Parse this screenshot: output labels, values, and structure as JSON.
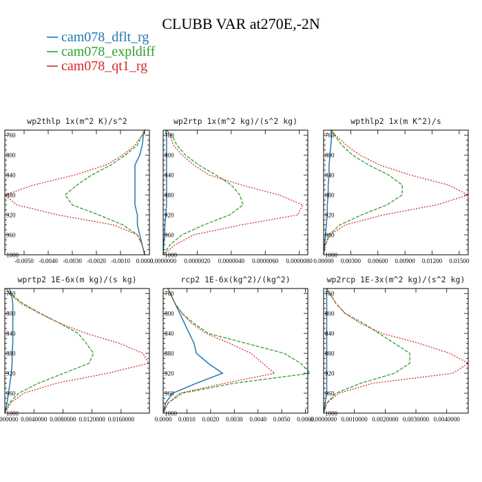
{
  "chart_data": {
    "type": "line",
    "title": "CLUBB VAR at270E,-2N",
    "legend": {
      "placement": "top-left",
      "entries": [
        {
          "name": "cam078_dflt_rg",
          "color": "#1f77b4"
        },
        {
          "name": "cam078_expldiff",
          "color": "#2ca02c"
        },
        {
          "name": "cam078_qt1_rg",
          "color": "#d62728"
        }
      ]
    },
    "y_axis": {
      "ylim": [
        1000,
        750
      ],
      "ticks": [
        760,
        800,
        840,
        880,
        920,
        960,
        1000
      ],
      "tick_labels": [
        "760",
        "800",
        "840",
        "880",
        "920",
        "960",
        "1000"
      ]
    },
    "panels": [
      {
        "title": "wp2thlp  1x(m^2 K)/s^2",
        "xlim": [
          -0.0058,
          0.0002
        ],
        "xticks": [
          -0.005,
          -0.004,
          -0.003,
          -0.002,
          -0.001,
          0.0
        ],
        "xtick_labels": [
          "-0.0050",
          "-0.0040",
          "-0.0030",
          "-0.0020",
          "-0.0010",
          "0.0000"
        ],
        "y": [
          750,
          760,
          780,
          800,
          820,
          840,
          860,
          880,
          900,
          920,
          940,
          960,
          980,
          1000
        ],
        "series": [
          {
            "name": "cam078_dflt_rg",
            "values": [
              0,
              -5e-05,
              -0.0001,
              -0.0002,
              -0.0004,
              -0.0004,
              -0.0004,
              -0.0004,
              -0.0004,
              -0.0003,
              -0.0003,
              -0.0002,
              -0.0001,
              0
            ]
          },
          {
            "name": "cam078_expldiff",
            "values": [
              0,
              -0.0001,
              -0.0003,
              -0.0008,
              -0.0014,
              -0.0022,
              -0.0028,
              -0.0033,
              -0.003,
              -0.0019,
              -0.0009,
              -0.0003,
              -0.0001,
              0
            ]
          },
          {
            "name": "cam078_qt1_rg",
            "values": [
              0,
              -0.0001,
              -0.0004,
              -0.0009,
              -0.0016,
              -0.0029,
              -0.0046,
              -0.0058,
              -0.0053,
              -0.0036,
              -0.0013,
              -0.0003,
              -0.0001,
              0
            ]
          }
        ]
      },
      {
        "title": "wp2rtp  1x(m^2 kg)/(s^2 kg)",
        "xlim": [
          0.0,
          8.5e-06
        ],
        "xticks": [
          0.0,
          2e-06,
          4e-06,
          6e-06,
          8e-06
        ],
        "xtick_labels": [
          "0.0000000",
          "0.0000020",
          "0.0000040",
          "0.0000060",
          "0.0000080"
        ],
        "y": [
          750,
          760,
          780,
          800,
          820,
          840,
          860,
          880,
          900,
          920,
          940,
          960,
          980,
          1000
        ],
        "series": [
          {
            "name": "cam078_dflt_rg",
            "values": [
              1.5e-07,
              2e-07,
              2e-07,
              2e-07,
              2e-07,
              2e-07,
              2e-07,
              2e-07,
              2e-07,
              1.5e-07,
              1e-07,
              8e-08,
              3e-08,
              0
            ]
          },
          {
            "name": "cam078_expldiff",
            "values": [
              2e-07,
              5e-07,
              8e-07,
              1.3e-06,
              2.1e-06,
              3.1e-06,
              4e-06,
              4.5e-06,
              4.7e-06,
              3.9e-06,
              2.4e-06,
              1.1e-06,
              4e-07,
              0
            ]
          },
          {
            "name": "cam078_qt1_rg",
            "values": [
              2e-07,
              4e-07,
              6e-07,
              1.1e-06,
              1.8e-06,
              2.7e-06,
              4.6e-06,
              6.8e-06,
              8.2e-06,
              7.9e-06,
              4.6e-06,
              1.8e-06,
              7e-07,
              0
            ]
          }
        ]
      },
      {
        "title": "wpthlp2  1x(m K^2)/s",
        "xlim": [
          0.0,
          0.016
        ],
        "xticks": [
          0.0,
          0.003,
          0.006,
          0.009,
          0.012,
          0.015
        ],
        "xtick_labels": [
          "0.00000",
          "0.00300",
          "0.00600",
          "0.00900",
          "0.01200",
          "0.01500"
        ],
        "y": [
          750,
          760,
          780,
          800,
          820,
          840,
          860,
          880,
          900,
          920,
          940,
          960,
          980,
          1000
        ],
        "series": [
          {
            "name": "cam078_dflt_rg",
            "values": [
              0.0008,
              0.0009,
              0.0008,
              0.0007,
              0.0006,
              0.0006,
              0.0005,
              0.0005,
              0.0004,
              0.0004,
              0.0003,
              0.0002,
              0.0001,
              0
            ]
          },
          {
            "name": "cam078_expldiff",
            "values": [
              0.0008,
              0.0012,
              0.002,
              0.0032,
              0.005,
              0.0072,
              0.0087,
              0.0087,
              0.007,
              0.0042,
              0.0018,
              0.0006,
              0.0002,
              0
            ]
          },
          {
            "name": "cam078_qt1_rg",
            "values": [
              0.0009,
              0.0013,
              0.0025,
              0.004,
              0.0062,
              0.0096,
              0.0138,
              0.016,
              0.0125,
              0.0066,
              0.0024,
              0.0007,
              0.0002,
              0
            ]
          }
        ]
      },
      {
        "title": "wprtp2  1E-6x(m kg)/(s kg)",
        "xlim": [
          0.0,
          0.0199
        ],
        "xticks": [
          0.0,
          0.004,
          0.008,
          0.012,
          0.016
        ],
        "xtick_labels": [
          "0.0000000",
          "0.0040000",
          "0.0080000",
          "0.0120000",
          "0.0160000"
        ],
        "y": [
          750,
          760,
          780,
          800,
          820,
          840,
          860,
          880,
          900,
          920,
          940,
          960,
          980,
          1000
        ],
        "series": [
          {
            "name": "cam078_dflt_rg",
            "values": [
              0.0006,
              0.0009,
              0.0011,
              0.0011,
              0.0011,
              0.0011,
              0.0011,
              0.001,
              0.001,
              0.0009,
              0.0007,
              0.0005,
              0.0003,
              0
            ]
          },
          {
            "name": "cam078_expldiff",
            "values": [
              0.0002,
              0.0007,
              0.0025,
              0.0049,
              0.0076,
              0.0101,
              0.0112,
              0.0122,
              0.0116,
              0.0081,
              0.0046,
              0.0019,
              0.0006,
              0
            ]
          },
          {
            "name": "cam078_qt1_rg",
            "values": [
              0.0002,
              0.0006,
              0.0022,
              0.0048,
              0.0076,
              0.0112,
              0.0158,
              0.019,
              0.0198,
              0.0141,
              0.0071,
              0.0026,
              0.0008,
              0
            ]
          }
        ]
      },
      {
        "title": "rcp2  1E-6x(kg^2)/(kg^2)",
        "xlim": [
          0.0,
          0.0061
        ],
        "xticks": [
          0.0,
          0.001,
          0.002,
          0.003,
          0.004,
          0.005,
          0.006
        ],
        "xtick_labels": [
          "0.0000",
          "0.0010",
          "0.0020",
          "0.0030",
          "0.0040",
          "0.0050",
          "0.0060"
        ],
        "y": [
          750,
          760,
          780,
          800,
          820,
          840,
          860,
          880,
          900,
          920,
          940,
          960,
          980,
          1000
        ],
        "series": [
          {
            "name": "cam078_dflt_rg",
            "values": [
              0.0002,
              0.0003,
              0.0005,
              0.0007,
              0.0009,
              0.0011,
              0.0013,
              0.0014,
              0.0019,
              0.0025,
              0.0014,
              0.0004,
              0.0001,
              0
            ]
          },
          {
            "name": "cam078_expldiff",
            "values": [
              0.0002,
              0.0003,
              0.0005,
              0.0008,
              0.0013,
              0.0019,
              0.0035,
              0.0051,
              0.0058,
              0.0062,
              0.003,
              0.0008,
              0.0002,
              0
            ]
          },
          {
            "name": "cam078_qt1_rg",
            "values": [
              0.0002,
              0.0003,
              0.0005,
              0.0008,
              0.0012,
              0.0018,
              0.0028,
              0.0037,
              0.0042,
              0.0047,
              0.0026,
              0.0007,
              0.0002,
              0
            ]
          }
        ]
      },
      {
        "title": "wp2rcp  1E-3x(m^2 kg)/(s^2 kg)",
        "xlim": [
          0.0,
          0.0047
        ],
        "xticks": [
          0.0,
          0.001,
          0.002,
          0.003,
          0.004
        ],
        "xtick_labels": [
          "0.0000000",
          "0.0010000",
          "0.0020000",
          "0.0030000",
          "0.0040000"
        ],
        "y": [
          750,
          760,
          780,
          800,
          820,
          840,
          860,
          880,
          900,
          920,
          940,
          960,
          980,
          1000
        ],
        "series": [
          {
            "name": "cam078_dflt_rg",
            "values": [
              0.0001,
              0.0001,
              0.0001,
              0.0001,
              0.0001,
              0.0001,
              0.0001,
              0.0001,
              0.0001,
              0.0001,
              0.0001,
              0.0001,
              5e-05,
              0
            ]
          },
          {
            "name": "cam078_expldiff",
            "values": [
              0.0001,
              0.0002,
              0.0004,
              0.0007,
              0.0013,
              0.0018,
              0.0023,
              0.0028,
              0.0028,
              0.0023,
              0.0012,
              0.0004,
              0.0001,
              0
            ]
          },
          {
            "name": "cam078_qt1_rg",
            "values": [
              0.0001,
              0.0002,
              0.0004,
              0.0007,
              0.0012,
              0.0019,
              0.0031,
              0.0041,
              0.0047,
              0.0042,
              0.0016,
              0.0005,
              0.0001,
              0
            ]
          }
        ]
      }
    ]
  }
}
